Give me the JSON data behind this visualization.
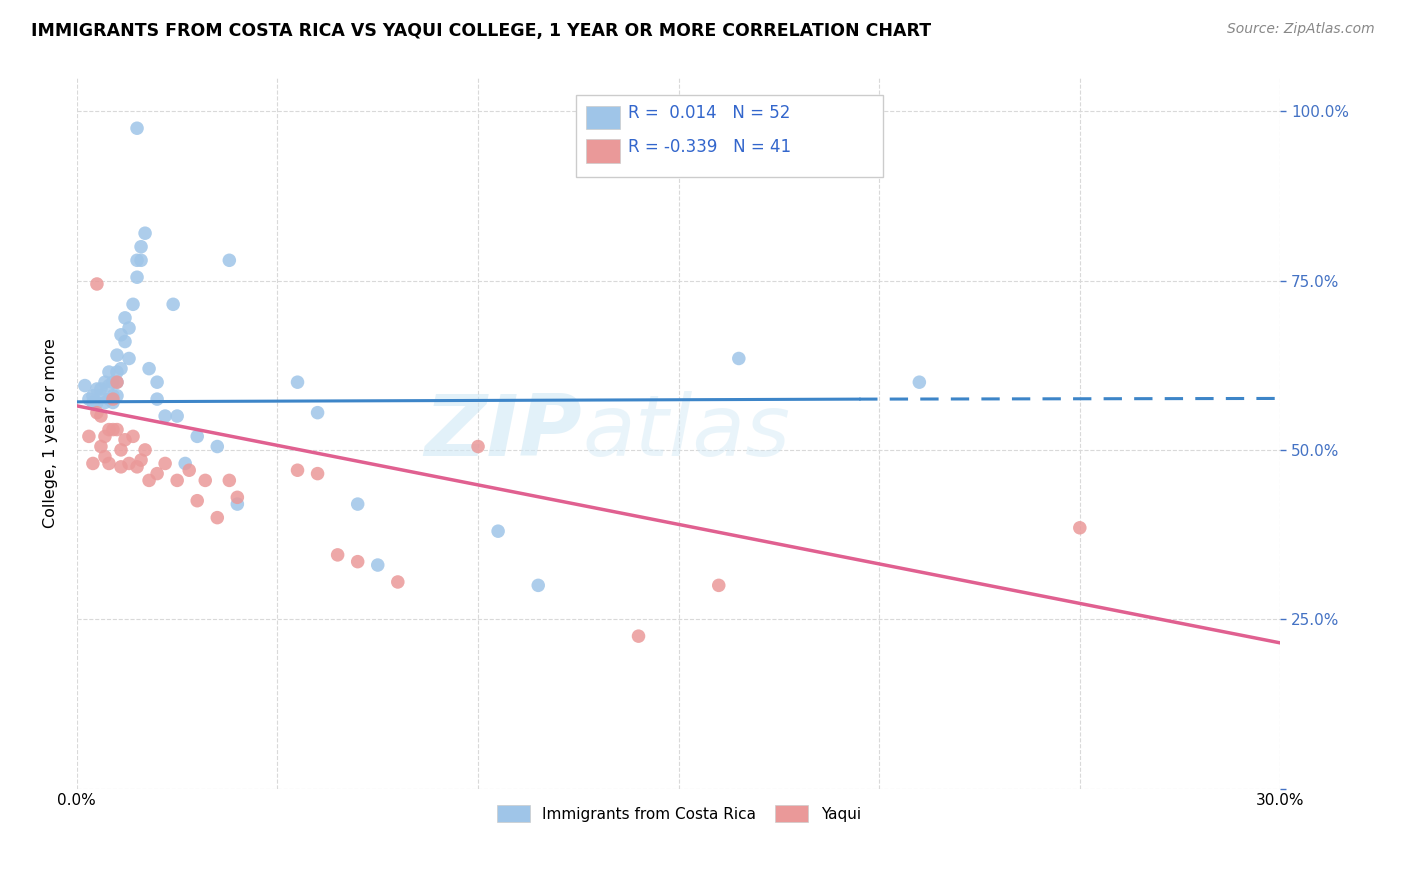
{
  "title": "IMMIGRANTS FROM COSTA RICA VS YAQUI COLLEGE, 1 YEAR OR MORE CORRELATION CHART",
  "source": "Source: ZipAtlas.com",
  "ylabel": "College, 1 year or more",
  "xlim": [
    0.0,
    0.3
  ],
  "ylim": [
    0.0,
    1.05
  ],
  "blue_color": "#9fc5e8",
  "pink_color": "#ea9999",
  "blue_line_color": "#3d85c8",
  "pink_line_color": "#e06090",
  "watermark_zip": "ZIP",
  "watermark_atlas": "atlas",
  "blue_points_x": [
    0.002,
    0.003,
    0.004,
    0.004,
    0.005,
    0.005,
    0.006,
    0.006,
    0.007,
    0.007,
    0.008,
    0.008,
    0.008,
    0.009,
    0.009,
    0.009,
    0.01,
    0.01,
    0.01,
    0.01,
    0.011,
    0.011,
    0.012,
    0.012,
    0.013,
    0.013,
    0.014,
    0.015,
    0.015,
    0.016,
    0.016,
    0.017,
    0.018,
    0.02,
    0.02,
    0.022,
    0.024,
    0.025,
    0.027,
    0.03,
    0.035,
    0.038,
    0.04,
    0.055,
    0.06,
    0.07,
    0.075,
    0.105,
    0.115,
    0.165,
    0.21,
    0.015
  ],
  "blue_points_y": [
    0.595,
    0.575,
    0.58,
    0.57,
    0.59,
    0.57,
    0.59,
    0.58,
    0.6,
    0.57,
    0.615,
    0.595,
    0.575,
    0.6,
    0.58,
    0.57,
    0.64,
    0.615,
    0.6,
    0.58,
    0.67,
    0.62,
    0.695,
    0.66,
    0.68,
    0.635,
    0.715,
    0.78,
    0.755,
    0.8,
    0.78,
    0.82,
    0.62,
    0.6,
    0.575,
    0.55,
    0.715,
    0.55,
    0.48,
    0.52,
    0.505,
    0.78,
    0.42,
    0.6,
    0.555,
    0.42,
    0.33,
    0.38,
    0.3,
    0.635,
    0.6,
    0.975
  ],
  "pink_points_x": [
    0.003,
    0.004,
    0.005,
    0.006,
    0.006,
    0.007,
    0.007,
    0.008,
    0.008,
    0.009,
    0.009,
    0.01,
    0.01,
    0.011,
    0.011,
    0.012,
    0.013,
    0.014,
    0.015,
    0.016,
    0.017,
    0.018,
    0.02,
    0.022,
    0.025,
    0.028,
    0.03,
    0.032,
    0.035,
    0.038,
    0.04,
    0.055,
    0.06,
    0.065,
    0.07,
    0.08,
    0.1,
    0.14,
    0.16,
    0.25,
    0.005
  ],
  "pink_points_y": [
    0.52,
    0.48,
    0.555,
    0.55,
    0.505,
    0.52,
    0.49,
    0.53,
    0.48,
    0.575,
    0.53,
    0.6,
    0.53,
    0.5,
    0.475,
    0.515,
    0.48,
    0.52,
    0.475,
    0.485,
    0.5,
    0.455,
    0.465,
    0.48,
    0.455,
    0.47,
    0.425,
    0.455,
    0.4,
    0.455,
    0.43,
    0.47,
    0.465,
    0.345,
    0.335,
    0.305,
    0.505,
    0.225,
    0.3,
    0.385,
    0.745
  ],
  "blue_line_x": [
    0.0,
    0.195,
    0.3
  ],
  "blue_line_y": [
    0.571,
    0.575,
    0.576
  ],
  "blue_line_solid_end": 0.195,
  "pink_line_x": [
    0.0,
    0.3
  ],
  "pink_line_y": [
    0.565,
    0.215
  ],
  "grid_color": "#d9d9d9",
  "background_color": "#ffffff",
  "legend_blue_r": "R =  0.014",
  "legend_blue_n": "N = 52",
  "legend_pink_r": "R = -0.339",
  "legend_pink_n": "N = 41"
}
